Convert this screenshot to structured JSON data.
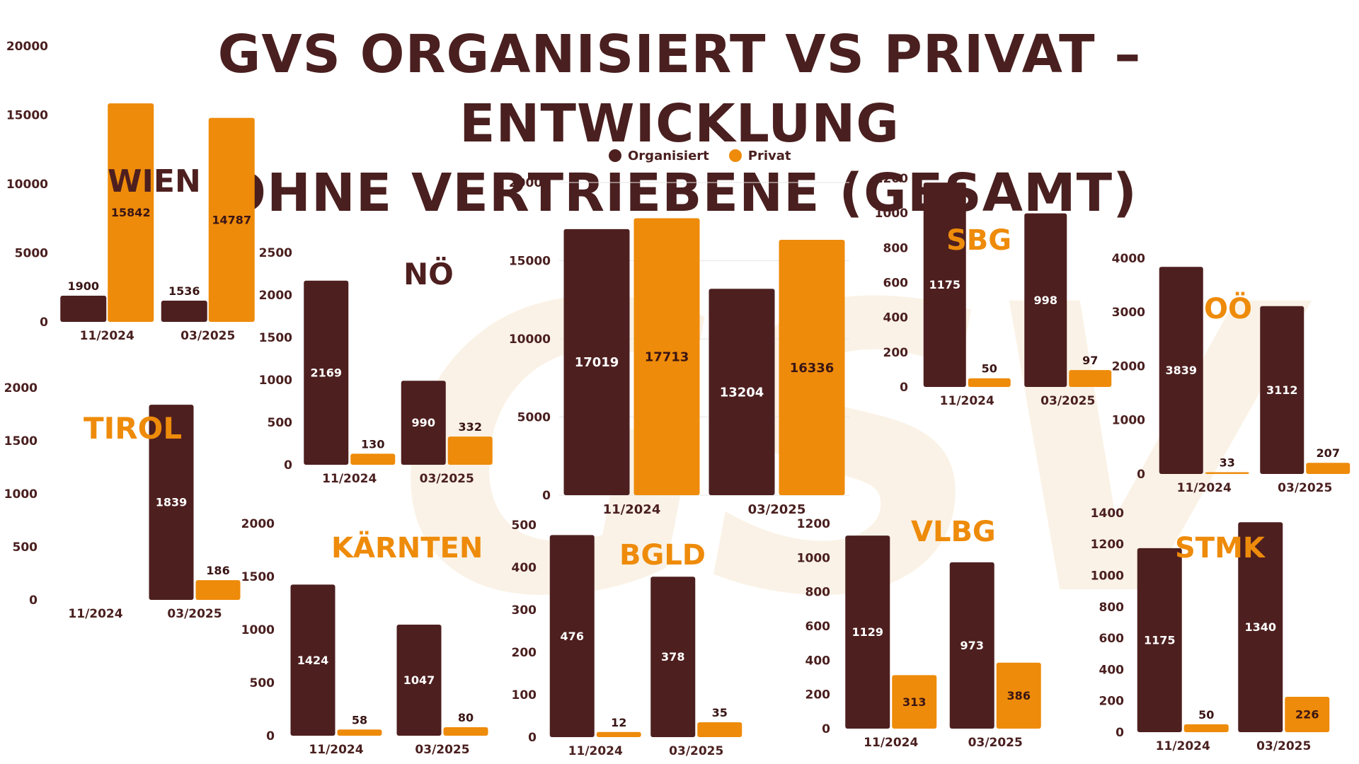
{
  "title": {
    "line1": "GVS ORGANISIERT VS PRIVAT – ENTWICKLUNG",
    "line2": "OHNE VERTRIEBENE (GESAMT)"
  },
  "legend": {
    "organisiert": "Organisiert",
    "privat": "Privat"
  },
  "colors": {
    "organisiert": "#4e1f1f",
    "privat": "#ee8b0a",
    "title": "#4a1f1f",
    "watermark": "#f7e8d2"
  },
  "chart_data": [
    {
      "id": "gesamt",
      "type": "bar",
      "title": "",
      "categories": [
        "11/2024",
        "03/2025"
      ],
      "series": [
        {
          "name": "Organisiert",
          "values": [
            17019,
            13204
          ]
        },
        {
          "name": "Privat",
          "values": [
            17713,
            16336
          ]
        }
      ],
      "ylim": [
        0,
        20000
      ],
      "yticks": [
        0,
        5000,
        10000,
        15000,
        20000
      ],
      "grid": true
    },
    {
      "id": "wien",
      "type": "bar",
      "title": "WIEN",
      "categories": [
        "11/2024",
        "03/2025"
      ],
      "series": [
        {
          "name": "Organisiert",
          "values": [
            1900,
            1536
          ]
        },
        {
          "name": "Privat",
          "values": [
            15842,
            14787
          ]
        }
      ],
      "ylim": [
        0,
        20000
      ],
      "yticks": [
        0,
        5000,
        10000,
        15000,
        20000
      ]
    },
    {
      "id": "noe",
      "type": "bar",
      "title": "NÖ",
      "categories": [
        "11/2024",
        "03/2025"
      ],
      "series": [
        {
          "name": "Organisiert",
          "values": [
            2169,
            990
          ]
        },
        {
          "name": "Privat",
          "values": [
            130,
            332
          ]
        }
      ],
      "ylim": [
        0,
        2500
      ],
      "yticks": [
        0,
        500,
        1000,
        1500,
        2000,
        2500
      ]
    },
    {
      "id": "tirol",
      "type": "bar",
      "title": "TIROL",
      "categories": [
        "11/2024",
        "03/2025"
      ],
      "series": [
        {
          "name": "Organisiert",
          "values": [
            null,
            1839
          ]
        },
        {
          "name": "Privat",
          "values": [
            null,
            186
          ]
        }
      ],
      "ylim": [
        0,
        2000
      ],
      "yticks": [
        0,
        500,
        1000,
        1500,
        2000
      ]
    },
    {
      "id": "kaernten",
      "type": "bar",
      "title": "KÄRNTEN",
      "categories": [
        "11/2024",
        "03/2025"
      ],
      "series": [
        {
          "name": "Organisiert",
          "values": [
            1424,
            1047
          ]
        },
        {
          "name": "Privat",
          "values": [
            58,
            80
          ]
        }
      ],
      "ylim": [
        0,
        2000
      ],
      "yticks": [
        0,
        500,
        1000,
        1500,
        2000
      ]
    },
    {
      "id": "sbg",
      "type": "bar",
      "title": "SBG",
      "categories": [
        "11/2024",
        "03/2025"
      ],
      "series": [
        {
          "name": "Organisiert",
          "values": [
            1175,
            998
          ]
        },
        {
          "name": "Privat",
          "values": [
            50,
            97
          ]
        }
      ],
      "ylim": [
        0,
        1200
      ],
      "yticks": [
        0,
        200,
        400,
        600,
        800,
        1000,
        1200
      ]
    },
    {
      "id": "ooe",
      "type": "bar",
      "title": "OÖ",
      "categories": [
        "11/2024",
        "03/2025"
      ],
      "series": [
        {
          "name": "Organisiert",
          "values": [
            3839,
            3112
          ]
        },
        {
          "name": "Privat",
          "values": [
            33,
            207
          ]
        }
      ],
      "ylim": [
        0,
        4000
      ],
      "yticks": [
        0,
        1000,
        2000,
        3000,
        4000
      ]
    },
    {
      "id": "bgld",
      "type": "bar",
      "title": "BGLD",
      "categories": [
        "11/2024",
        "03/2025"
      ],
      "series": [
        {
          "name": "Organisiert",
          "values": [
            476,
            378
          ]
        },
        {
          "name": "Privat",
          "values": [
            12,
            35
          ]
        }
      ],
      "ylim": [
        0,
        500
      ],
      "yticks": [
        0,
        100,
        200,
        300,
        400,
        500
      ]
    },
    {
      "id": "vlbg",
      "type": "bar",
      "title": "VLBG",
      "categories": [
        "11/2024",
        "03/2025"
      ],
      "series": [
        {
          "name": "Organisiert",
          "values": [
            1129,
            973
          ]
        },
        {
          "name": "Privat",
          "values": [
            313,
            386
          ]
        }
      ],
      "ylim": [
        0,
        1200
      ],
      "yticks": [
        0,
        200,
        400,
        600,
        800,
        1000,
        1200
      ]
    },
    {
      "id": "stmk",
      "type": "bar",
      "title": "STMK",
      "categories": [
        "11/2024",
        "03/2025"
      ],
      "series": [
        {
          "name": "Organisiert",
          "values": [
            1175,
            1340
          ]
        },
        {
          "name": "Privat",
          "values": [
            50,
            226
          ]
        }
      ],
      "ylim": [
        0,
        1400
      ],
      "yticks": [
        0,
        200,
        400,
        600,
        800,
        1000,
        1200,
        1400
      ]
    }
  ]
}
